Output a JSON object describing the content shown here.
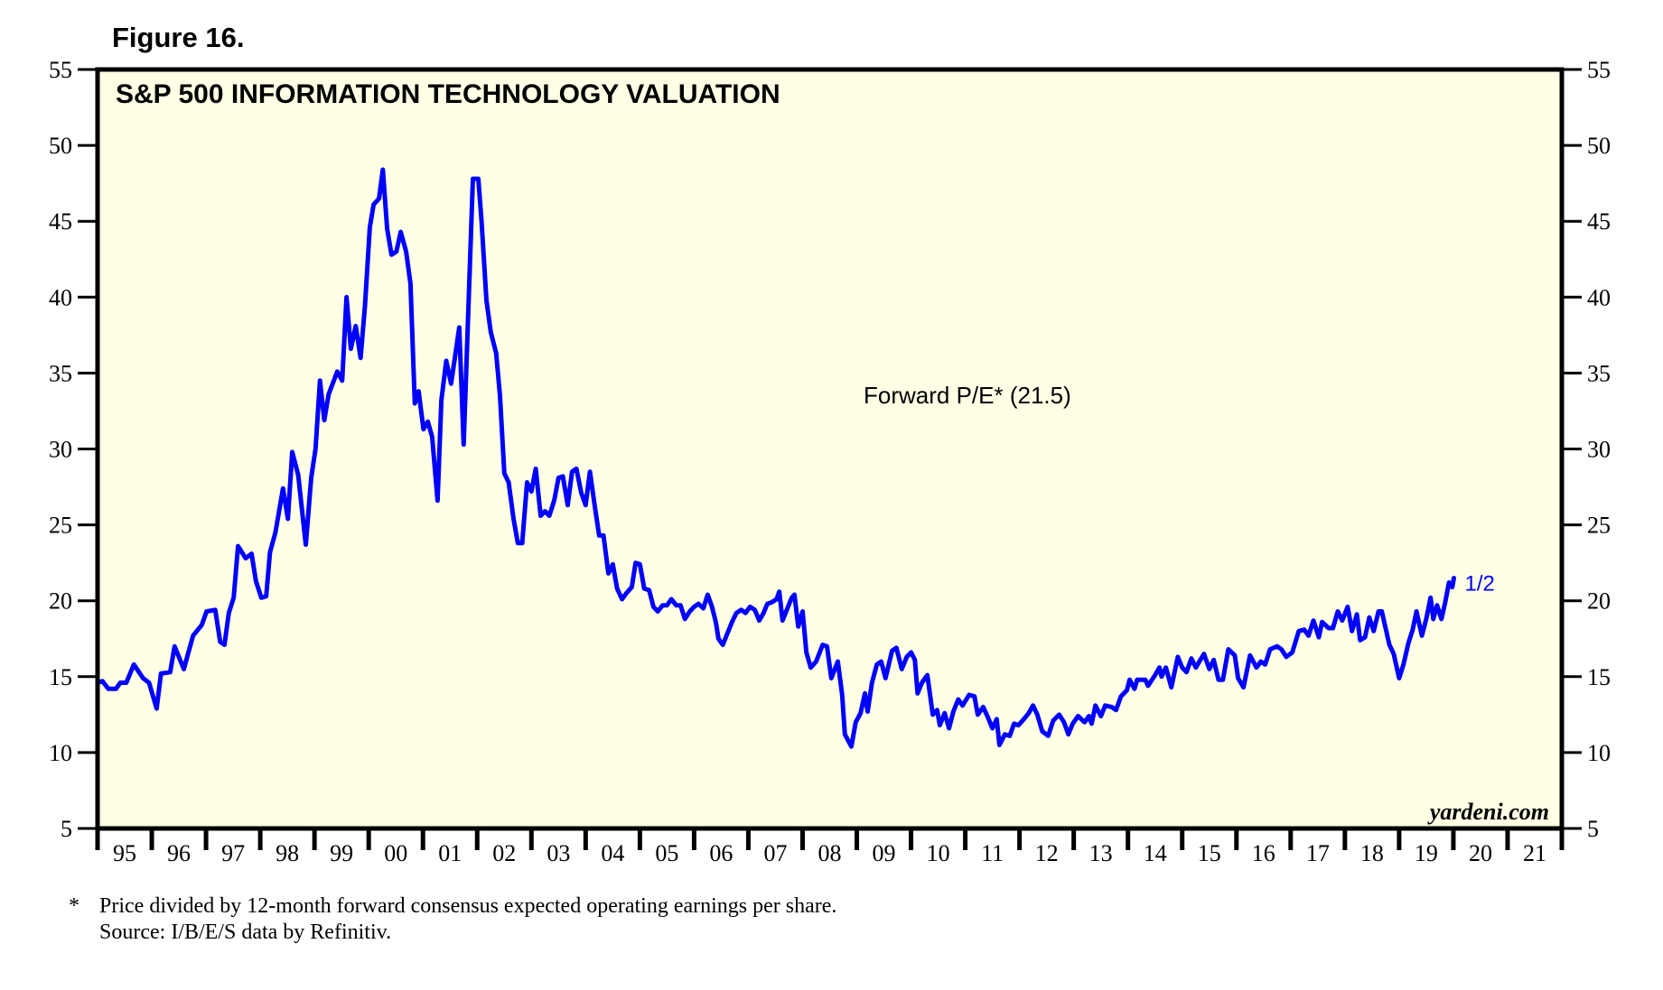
{
  "figure_label": "Figure 16.",
  "footnote": {
    "marker": "*",
    "line1": "Price divided by 12-month forward consensus expected operating earnings per share.",
    "line2": "Source: I/B/E/S data by Refinitiv."
  },
  "colors": {
    "plot_background": "#FFFFE5",
    "series_line": "#0000FF",
    "axis": "#000000"
  },
  "chart_data": {
    "type": "line",
    "title": "S&P 500 INFORMATION TECHNOLOGY VALUATION",
    "annotation": "Forward P/E* (21.5)",
    "end_label": "1/2",
    "source_credit": "yardeni.com",
    "xlabel": "",
    "ylabel": "",
    "ylim": [
      5,
      55
    ],
    "xlim": [
      1995,
      2022
    ],
    "yticks": [
      5,
      10,
      15,
      20,
      25,
      30,
      35,
      40,
      45,
      50,
      55
    ],
    "y_axis_both_sides": true,
    "grid": false,
    "x_tick_labels": [
      "95",
      "96",
      "97",
      "98",
      "99",
      "00",
      "01",
      "02",
      "03",
      "04",
      "05",
      "06",
      "07",
      "08",
      "09",
      "10",
      "11",
      "12",
      "13",
      "14",
      "15",
      "16",
      "17",
      "18",
      "19",
      "20",
      "21"
    ],
    "series": [
      {
        "name": "Forward P/E",
        "latest_value": 21.5,
        "points": [
          [
            1995.0,
            14.6
          ],
          [
            1995.09,
            14.7
          ],
          [
            1995.2,
            14.2
          ],
          [
            1995.34,
            14.2
          ],
          [
            1995.42,
            14.6
          ],
          [
            1995.53,
            14.6
          ],
          [
            1995.67,
            15.8
          ],
          [
            1995.84,
            14.9
          ],
          [
            1995.95,
            14.6
          ],
          [
            1996.09,
            12.9
          ],
          [
            1996.17,
            15.2
          ],
          [
            1996.34,
            15.3
          ],
          [
            1996.42,
            17.0
          ],
          [
            1996.59,
            15.5
          ],
          [
            1996.76,
            17.7
          ],
          [
            1996.92,
            18.4
          ],
          [
            1997.01,
            19.3
          ],
          [
            1997.17,
            19.4
          ],
          [
            1997.26,
            17.3
          ],
          [
            1997.34,
            17.1
          ],
          [
            1997.42,
            19.2
          ],
          [
            1997.51,
            20.2
          ],
          [
            1997.59,
            23.6
          ],
          [
            1997.73,
            22.8
          ],
          [
            1997.84,
            23.1
          ],
          [
            1997.92,
            21.3
          ],
          [
            1998.02,
            20.2
          ],
          [
            1998.11,
            20.3
          ],
          [
            1998.18,
            23.2
          ],
          [
            1998.28,
            24.5
          ],
          [
            1998.42,
            27.4
          ],
          [
            1998.51,
            25.4
          ],
          [
            1998.59,
            29.8
          ],
          [
            1998.7,
            28.3
          ],
          [
            1998.84,
            23.7
          ],
          [
            1998.94,
            28.1
          ],
          [
            1999.02,
            30.0
          ],
          [
            1999.1,
            34.5
          ],
          [
            1999.18,
            31.9
          ],
          [
            1999.26,
            33.6
          ],
          [
            1999.42,
            35.1
          ],
          [
            1999.51,
            34.5
          ],
          [
            1999.59,
            40.0
          ],
          [
            1999.67,
            36.6
          ],
          [
            1999.76,
            38.1
          ],
          [
            1999.85,
            36.0
          ],
          [
            1999.93,
            39.4
          ],
          [
            2000.02,
            44.6
          ],
          [
            2000.09,
            46.1
          ],
          [
            2000.19,
            46.5
          ],
          [
            2000.26,
            48.4
          ],
          [
            2000.34,
            44.5
          ],
          [
            2000.42,
            42.8
          ],
          [
            2000.51,
            43.0
          ],
          [
            2000.59,
            44.3
          ],
          [
            2000.69,
            43.0
          ],
          [
            2000.77,
            40.9
          ],
          [
            2000.85,
            33.0
          ],
          [
            2000.92,
            33.8
          ],
          [
            2001.01,
            31.3
          ],
          [
            2001.09,
            31.8
          ],
          [
            2001.17,
            30.8
          ],
          [
            2001.27,
            26.6
          ],
          [
            2001.34,
            33.2
          ],
          [
            2001.43,
            35.8
          ],
          [
            2001.52,
            34.3
          ],
          [
            2001.67,
            38.0
          ],
          [
            2001.75,
            30.3
          ],
          [
            2001.92,
            47.8
          ],
          [
            2002.02,
            47.8
          ],
          [
            2002.08,
            45.0
          ],
          [
            2002.17,
            39.8
          ],
          [
            2002.25,
            37.7
          ],
          [
            2002.35,
            36.3
          ],
          [
            2002.42,
            33.5
          ],
          [
            2002.5,
            28.4
          ],
          [
            2002.58,
            27.8
          ],
          [
            2002.67,
            25.4
          ],
          [
            2002.75,
            23.8
          ],
          [
            2002.83,
            23.8
          ],
          [
            2002.92,
            27.8
          ],
          [
            2003.0,
            27.2
          ],
          [
            2003.08,
            28.7
          ],
          [
            2003.17,
            25.6
          ],
          [
            2003.25,
            25.9
          ],
          [
            2003.33,
            25.6
          ],
          [
            2003.42,
            26.6
          ],
          [
            2003.5,
            28.1
          ],
          [
            2003.58,
            28.2
          ],
          [
            2003.67,
            26.3
          ],
          [
            2003.75,
            28.5
          ],
          [
            2003.83,
            28.7
          ],
          [
            2003.92,
            27.1
          ],
          [
            2004.0,
            26.3
          ],
          [
            2004.08,
            28.5
          ],
          [
            2004.17,
            26.2
          ],
          [
            2004.25,
            24.3
          ],
          [
            2004.33,
            24.3
          ],
          [
            2004.42,
            21.8
          ],
          [
            2004.5,
            22.4
          ],
          [
            2004.58,
            20.8
          ],
          [
            2004.67,
            20.1
          ],
          [
            2004.75,
            20.5
          ],
          [
            2004.85,
            20.9
          ],
          [
            2004.92,
            22.5
          ],
          [
            2005.0,
            22.4
          ],
          [
            2005.08,
            20.8
          ],
          [
            2005.17,
            20.7
          ],
          [
            2005.25,
            19.6
          ],
          [
            2005.33,
            19.3
          ],
          [
            2005.42,
            19.7
          ],
          [
            2005.5,
            19.7
          ],
          [
            2005.58,
            20.1
          ],
          [
            2005.67,
            19.7
          ],
          [
            2005.75,
            19.7
          ],
          [
            2005.83,
            18.8
          ],
          [
            2005.92,
            19.3
          ],
          [
            2006.0,
            19.6
          ],
          [
            2006.08,
            19.8
          ],
          [
            2006.17,
            19.5
          ],
          [
            2006.25,
            20.4
          ],
          [
            2006.33,
            19.6
          ],
          [
            2006.4,
            18.6
          ],
          [
            2006.45,
            17.5
          ],
          [
            2006.53,
            17.1
          ],
          [
            2006.62,
            17.9
          ],
          [
            2006.7,
            18.6
          ],
          [
            2006.78,
            19.2
          ],
          [
            2006.87,
            19.4
          ],
          [
            2006.95,
            19.2
          ],
          [
            2007.03,
            19.6
          ],
          [
            2007.12,
            19.4
          ],
          [
            2007.2,
            18.7
          ],
          [
            2007.28,
            19.2
          ],
          [
            2007.35,
            19.8
          ],
          [
            2007.43,
            19.9
          ],
          [
            2007.52,
            20.1
          ],
          [
            2007.57,
            20.6
          ],
          [
            2007.63,
            18.7
          ],
          [
            2007.72,
            19.5
          ],
          [
            2007.8,
            20.2
          ],
          [
            2007.85,
            20.4
          ],
          [
            2007.92,
            18.3
          ],
          [
            2008.0,
            19.3
          ],
          [
            2008.07,
            16.6
          ],
          [
            2008.15,
            15.6
          ],
          [
            2008.25,
            16.0
          ],
          [
            2008.37,
            17.1
          ],
          [
            2008.45,
            17.0
          ],
          [
            2008.53,
            14.9
          ],
          [
            2008.65,
            16.0
          ],
          [
            2008.73,
            13.8
          ],
          [
            2008.78,
            11.2
          ],
          [
            2008.9,
            10.4
          ],
          [
            2008.98,
            12.0
          ],
          [
            2009.07,
            12.6
          ],
          [
            2009.15,
            13.9
          ],
          [
            2009.2,
            12.7
          ],
          [
            2009.28,
            14.6
          ],
          [
            2009.37,
            15.8
          ],
          [
            2009.45,
            16.0
          ],
          [
            2009.53,
            14.9
          ],
          [
            2009.65,
            16.7
          ],
          [
            2009.73,
            16.9
          ],
          [
            2009.83,
            15.5
          ],
          [
            2009.92,
            16.3
          ],
          [
            2010.0,
            16.6
          ],
          [
            2010.07,
            16.1
          ],
          [
            2010.12,
            13.9
          ],
          [
            2010.2,
            14.6
          ],
          [
            2010.3,
            15.1
          ],
          [
            2010.4,
            12.5
          ],
          [
            2010.48,
            12.8
          ],
          [
            2010.53,
            11.8
          ],
          [
            2010.62,
            12.6
          ],
          [
            2010.7,
            11.6
          ],
          [
            2010.78,
            12.7
          ],
          [
            2010.87,
            13.5
          ],
          [
            2010.95,
            13.1
          ],
          [
            2011.07,
            13.8
          ],
          [
            2011.17,
            13.7
          ],
          [
            2011.23,
            12.5
          ],
          [
            2011.33,
            13.0
          ],
          [
            2011.42,
            12.3
          ],
          [
            2011.5,
            11.6
          ],
          [
            2011.58,
            12.2
          ],
          [
            2011.63,
            10.5
          ],
          [
            2011.73,
            11.2
          ],
          [
            2011.82,
            11.1
          ],
          [
            2011.9,
            11.9
          ],
          [
            2011.98,
            11.8
          ],
          [
            2012.08,
            12.2
          ],
          [
            2012.17,
            12.6
          ],
          [
            2012.25,
            13.1
          ],
          [
            2012.33,
            12.5
          ],
          [
            2012.42,
            11.4
          ],
          [
            2012.53,
            11.1
          ],
          [
            2012.62,
            12.1
          ],
          [
            2012.73,
            12.5
          ],
          [
            2012.82,
            12.0
          ],
          [
            2012.9,
            11.2
          ],
          [
            2012.98,
            11.9
          ],
          [
            2013.08,
            12.4
          ],
          [
            2013.2,
            12.0
          ],
          [
            2013.28,
            12.4
          ],
          [
            2013.33,
            11.9
          ],
          [
            2013.4,
            13.1
          ],
          [
            2013.5,
            12.4
          ],
          [
            2013.58,
            13.1
          ],
          [
            2013.7,
            13.0
          ],
          [
            2013.78,
            12.8
          ],
          [
            2013.87,
            13.7
          ],
          [
            2013.98,
            14.1
          ],
          [
            2014.03,
            14.8
          ],
          [
            2014.12,
            14.2
          ],
          [
            2014.17,
            14.8
          ],
          [
            2014.32,
            14.8
          ],
          [
            2014.37,
            14.4
          ],
          [
            2014.5,
            15.1
          ],
          [
            2014.58,
            15.6
          ],
          [
            2014.62,
            15.0
          ],
          [
            2014.7,
            15.6
          ],
          [
            2014.8,
            14.3
          ],
          [
            2014.92,
            16.3
          ],
          [
            2015.0,
            15.6
          ],
          [
            2015.08,
            15.3
          ],
          [
            2015.17,
            16.2
          ],
          [
            2015.25,
            15.6
          ],
          [
            2015.4,
            16.5
          ],
          [
            2015.5,
            15.5
          ],
          [
            2015.58,
            16.1
          ],
          [
            2015.67,
            14.8
          ],
          [
            2015.75,
            14.8
          ],
          [
            2015.85,
            16.8
          ],
          [
            2015.97,
            16.4
          ],
          [
            2016.03,
            14.9
          ],
          [
            2016.13,
            14.3
          ],
          [
            2016.25,
            16.4
          ],
          [
            2016.37,
            15.6
          ],
          [
            2016.45,
            16.0
          ],
          [
            2016.53,
            15.8
          ],
          [
            2016.62,
            16.8
          ],
          [
            2016.75,
            17.0
          ],
          [
            2016.83,
            16.8
          ],
          [
            2016.92,
            16.3
          ],
          [
            2017.03,
            16.6
          ],
          [
            2017.15,
            18.0
          ],
          [
            2017.25,
            18.1
          ],
          [
            2017.33,
            17.7
          ],
          [
            2017.42,
            18.7
          ],
          [
            2017.52,
            17.6
          ],
          [
            2017.58,
            18.6
          ],
          [
            2017.7,
            18.2
          ],
          [
            2017.78,
            18.2
          ],
          [
            2017.87,
            19.3
          ],
          [
            2017.95,
            18.7
          ],
          [
            2018.05,
            19.6
          ],
          [
            2018.13,
            18.0
          ],
          [
            2018.22,
            19.1
          ],
          [
            2018.28,
            17.4
          ],
          [
            2018.37,
            17.6
          ],
          [
            2018.45,
            18.9
          ],
          [
            2018.53,
            18.0
          ],
          [
            2018.62,
            19.3
          ],
          [
            2018.68,
            19.3
          ],
          [
            2018.75,
            18.2
          ],
          [
            2018.82,
            17.1
          ],
          [
            2018.9,
            16.5
          ],
          [
            2019.0,
            14.9
          ],
          [
            2019.08,
            15.8
          ],
          [
            2019.17,
            17.2
          ],
          [
            2019.25,
            18.1
          ],
          [
            2019.32,
            19.3
          ],
          [
            2019.42,
            17.7
          ],
          [
            2019.5,
            18.8
          ],
          [
            2019.58,
            20.2
          ],
          [
            2019.63,
            18.8
          ],
          [
            2019.7,
            19.7
          ],
          [
            2019.78,
            18.8
          ],
          [
            2019.85,
            19.9
          ],
          [
            2019.92,
            21.2
          ],
          [
            2019.98,
            20.9
          ],
          [
            2020.01,
            21.5
          ]
        ]
      }
    ]
  }
}
